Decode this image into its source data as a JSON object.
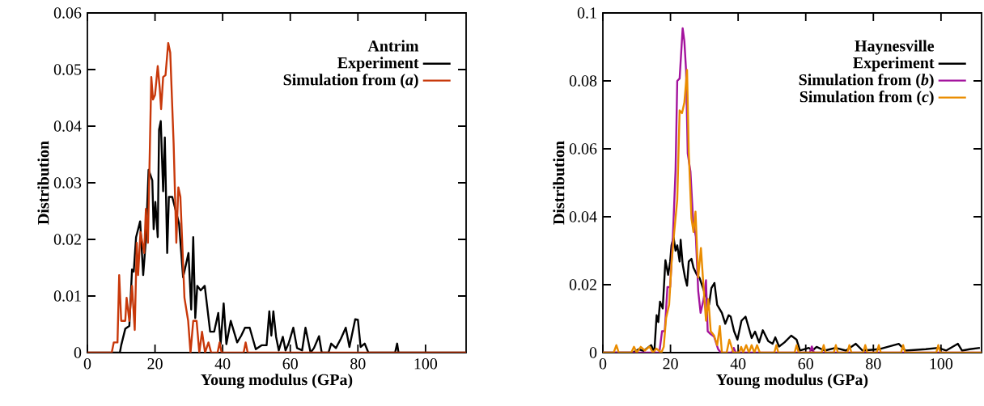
{
  "chart_data": [
    {
      "type": "line",
      "xlabel": "Young modulus (GPa)",
      "ylabel": "Distribution",
      "legend_title": "Antrim",
      "legend": "top right",
      "xlim": [
        0,
        112
      ],
      "ylim": [
        0,
        0.06
      ],
      "xticks": [
        0,
        20,
        40,
        60,
        80,
        100
      ],
      "yticks": [
        0,
        0.01,
        0.02,
        0.03,
        0.04,
        0.05,
        0.06
      ],
      "series": [
        {
          "name": "Experiment",
          "color": "#000000",
          "x": [
            0,
            9.6,
            10.0,
            11.2,
            12.4,
            13.2,
            13.7,
            14.4,
            15.6,
            16.5,
            17.3,
            18.1,
            19.2,
            19.6,
            20.1,
            20.8,
            21.2,
            21.7,
            22.4,
            22.9,
            23.6,
            24.1,
            25.1,
            27.1,
            28.3,
            29.9,
            30.7,
            31.3,
            31.9,
            32.5,
            33.5,
            34.7,
            36.3,
            37.5,
            38.7,
            39.4,
            40.3,
            41.1,
            42.4,
            44.3,
            45.5,
            46.6,
            48.0,
            49.8,
            51.5,
            53.0,
            53.8,
            54.4,
            55.0,
            55.8,
            56.6,
            57.8,
            58.6,
            59.5,
            60.9,
            62.0,
            63.5,
            64.5,
            66.0,
            67.0,
            68.5,
            69.3,
            71.3,
            72.1,
            73.5,
            75.0,
            76.4,
            77.5,
            79.2,
            80.0,
            80.8,
            82.0,
            83.1,
            91.0,
            91.6,
            92.0,
            112
          ],
          "values": [
            0,
            0,
            0.0013,
            0.0042,
            0.0047,
            0.0147,
            0.0143,
            0.0204,
            0.0232,
            0.0137,
            0.02,
            0.0323,
            0.0304,
            0.0218,
            0.0266,
            0.0204,
            0.0394,
            0.0409,
            0.0285,
            0.038,
            0.0176,
            0.0275,
            0.0275,
            0.0228,
            0.0133,
            0.0176,
            0.0076,
            0.0204,
            0.0061,
            0.0118,
            0.011,
            0.0118,
            0.0037,
            0.0037,
            0.007,
            0.0015,
            0.0087,
            0.0015,
            0.0056,
            0.0018,
            0.003,
            0.0044,
            0.0044,
            0.0006,
            0.0013,
            0.0013,
            0.0073,
            0.003,
            0.0073,
            0.0028,
            0.0004,
            0.0028,
            0.0004,
            0.0016,
            0.0044,
            0.0008,
            0.0004,
            0.0044,
            0,
            0.0008,
            0.0029,
            0,
            0,
            0.0016,
            0.0008,
            0.0025,
            0.0044,
            0.001,
            0.0059,
            0.0058,
            0.001,
            0.0016,
            0,
            0,
            0.0016,
            0,
            0
          ]
        },
        {
          "name": "Simulation from (*a*)",
          "color": "#c8380a",
          "x": [
            0,
            7.2,
            7.8,
            8.9,
            9.4,
            10.0,
            11.2,
            11.6,
            12.4,
            13.2,
            14.0,
            14.6,
            15.0,
            15.7,
            16.8,
            17.3,
            17.9,
            18.9,
            19.4,
            20.0,
            20.8,
            21.4,
            21.8,
            22.4,
            23.1,
            23.9,
            24.5,
            25.5,
            26.3,
            26.9,
            27.5,
            28.7,
            29.8,
            30.5,
            31.3,
            32.3,
            33.1,
            33.9,
            34.8,
            35.8,
            36.6,
            38.5,
            39.1,
            39.7,
            46.2,
            46.8,
            47.4,
            112
          ],
          "values": [
            0,
            0,
            0.0018,
            0.0018,
            0.0137,
            0.0056,
            0.0056,
            0.0097,
            0.0056,
            0.0118,
            0.004,
            0.0194,
            0.0137,
            0.0213,
            0.0176,
            0.0254,
            0.0194,
            0.0487,
            0.0447,
            0.0455,
            0.0506,
            0.0467,
            0.043,
            0.0487,
            0.049,
            0.0547,
            0.053,
            0.037,
            0.0194,
            0.0292,
            0.0275,
            0.0097,
            0.0056,
            0,
            0.0056,
            0.0056,
            0,
            0.0037,
            0,
            0.0018,
            0,
            0,
            0.0018,
            0,
            0,
            0.0018,
            0,
            0
          ]
        }
      ]
    },
    {
      "type": "line",
      "xlabel": "Young modulus (GPa)",
      "ylabel": "Distribution",
      "legend_title": "Haynesville",
      "legend": "top right",
      "xlim": [
        0,
        112
      ],
      "ylim": [
        0,
        0.1
      ],
      "xticks": [
        0,
        20,
        40,
        60,
        80,
        100
      ],
      "yticks": [
        0,
        0.02,
        0.04,
        0.06,
        0.08,
        0.1
      ],
      "series": [
        {
          "name": "Experiment",
          "color": "#000000",
          "x": [
            0,
            8.8,
            10.6,
            12.0,
            14.3,
            15.2,
            15.9,
            16.4,
            16.9,
            17.7,
            18.5,
            19.3,
            19.9,
            20.3,
            20.9,
            21.5,
            22.0,
            22.7,
            23.0,
            23.6,
            24.3,
            24.9,
            25.4,
            26.2,
            26.8,
            27.8,
            28.6,
            30.2,
            31.4,
            32.1,
            33.0,
            33.8,
            35.2,
            36.2,
            37.2,
            37.8,
            38.8,
            39.8,
            41.0,
            42.2,
            44.0,
            45.0,
            46.2,
            47.3,
            48.9,
            50.2,
            51.0,
            52.1,
            53.7,
            55.7,
            57.3,
            58.3,
            60.9,
            62.0,
            63.2,
            65.6,
            68.8,
            71.9,
            74.8,
            76.8,
            81.6,
            87.5,
            89.5,
            95.5,
            99.2,
            101.5,
            105.0,
            106.2,
            108.5,
            111.5
          ],
          "values": [
            0,
            0,
            0.001,
            0.0005,
            0.0022,
            0,
            0.011,
            0.009,
            0.015,
            0.013,
            0.0272,
            0.0229,
            0.0268,
            0.0316,
            0.034,
            0.03,
            0.0316,
            0.0268,
            0.0332,
            0.026,
            0.0221,
            0.0197,
            0.0268,
            0.0276,
            0.025,
            0.0229,
            0.022,
            0.0173,
            0.0141,
            0.019,
            0.0205,
            0.0141,
            0.0117,
            0.0085,
            0.011,
            0.0106,
            0.0063,
            0.0038,
            0.0094,
            0.0106,
            0.0043,
            0.0062,
            0.003,
            0.0066,
            0.0034,
            0.0026,
            0.0045,
            0.0018,
            0.003,
            0.005,
            0.0038,
            0.0006,
            0.0014,
            0.0006,
            0.0017,
            0.0006,
            0.0014,
            0.0006,
            0.0026,
            0.0006,
            0.001,
            0.0026,
            0.0006,
            0.001,
            0.0014,
            0.0006,
            0.0026,
            0.0006,
            0.001,
            0.0014
          ]
        },
        {
          "name": "Simulation from (*b*)",
          "color": "#a3139d",
          "x": [
            0,
            16.7,
            17.5,
            18.3,
            19.1,
            19.9,
            20.7,
            21.5,
            22.0,
            22.7,
            23.6,
            24.1,
            24.6,
            25.1,
            25.9,
            26.7,
            27.5,
            28.2,
            28.9,
            29.8,
            30.5,
            31.0,
            31.8,
            32.9,
            34.1,
            34.9,
            38.1,
            38.7,
            39.3,
            61.2,
            61.8,
            62.4,
            112
          ],
          "values": [
            0,
            0,
            0.0063,
            0.0063,
            0.0193,
            0.0193,
            0.034,
            0.0538,
            0.08,
            0.0807,
            0.0955,
            0.0917,
            0.0832,
            0.0586,
            0.0533,
            0.0387,
            0.0341,
            0.0181,
            0.0117,
            0.0157,
            0.0213,
            0.0063,
            0.0055,
            0.0047,
            0.001,
            0,
            0,
            0.0014,
            0,
            0,
            0.0018,
            0,
            0
          ]
        },
        {
          "name": "Simulation from (*c*)",
          "color": "#ea8c00",
          "x": [
            0,
            3.2,
            4.0,
            4.7,
            8.4,
            9.2,
            10.0,
            11.2,
            12.4,
            13.8,
            14.8,
            15.8,
            17.3,
            18.0,
            18.7,
            19.6,
            20.3,
            21.1,
            22.0,
            22.7,
            23.4,
            24.1,
            24.9,
            25.4,
            26.2,
            26.8,
            27.4,
            28.2,
            29.0,
            29.8,
            30.5,
            31.2,
            31.9,
            32.9,
            33.8,
            34.6,
            35.2,
            36.6,
            37.4,
            38.6,
            40.3,
            40.9,
            41.5,
            42.4,
            43.2,
            44.0,
            44.8,
            45.6,
            46.4,
            50.7,
            51.3,
            51.9,
            56.7,
            57.3,
            57.9,
            64.7,
            65.3,
            65.9,
            68.3,
            68.9,
            69.5,
            72.3,
            72.9,
            73.5,
            77.0,
            77.6,
            78.2,
            81.0,
            81.6,
            82.2,
            88.2,
            88.8,
            89.4,
            98.6,
            99.2,
            99.8,
            112
          ],
          "values": [
            0,
            0,
            0.0022,
            0,
            0,
            0.0017,
            0,
            0.0017,
            0.0006,
            0.0018,
            0,
            0.0012,
            0,
            0.0017,
            0.0102,
            0.0141,
            0.0262,
            0.0355,
            0.045,
            0.0713,
            0.0705,
            0.0736,
            0.0832,
            0.059,
            0.0395,
            0.0355,
            0.0415,
            0.0221,
            0.0308,
            0.0189,
            0.0094,
            0.0157,
            0.0063,
            0.005,
            0.0022,
            0.0078,
            0,
            0,
            0.0038,
            0,
            0,
            0.0017,
            0,
            0.0022,
            0,
            0.0022,
            0,
            0.0022,
            0,
            0,
            0.0022,
            0,
            0,
            0.0022,
            0,
            0,
            0.0022,
            0,
            0,
            0.0022,
            0,
            0,
            0.0022,
            0,
            0,
            0.0022,
            0,
            0,
            0.0022,
            0,
            0,
            0.0022,
            0,
            0,
            0.0022,
            0,
            0
          ]
        }
      ]
    }
  ]
}
